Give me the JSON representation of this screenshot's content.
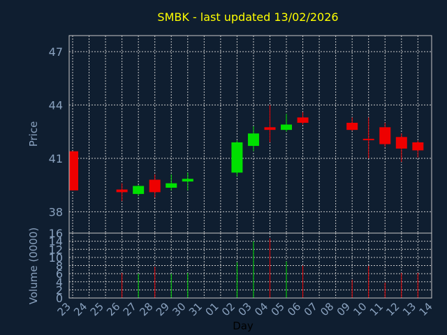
{
  "colors": {
    "background": "#0f1e30",
    "title": "#ffff00",
    "label": "#8aa2bf",
    "grid": "#c8c8c8",
    "up": "#00e000",
    "down": "#ee0000",
    "frame": "#c8c8c8",
    "xlabel": "#000000"
  },
  "chart_data": {
    "type": "candlestick",
    "title": "SMBK - last updated 13/02/2026",
    "price_ylabel": "Price",
    "volume_ylabel": "Volume (0000)",
    "xlabel": "Day",
    "grid": true,
    "price_ylim": [
      36.8,
      47.9
    ],
    "price_ticks": [
      "38",
      "41",
      "44",
      "47"
    ],
    "volume_ylim": [
      0,
      16
    ],
    "volume_ticks": [
      "0",
      "2",
      "4",
      "6",
      "8",
      "10",
      "12",
      "14",
      "16"
    ],
    "days": [
      "23",
      "24",
      "25",
      "26",
      "27",
      "28",
      "29",
      "30",
      "31",
      "01",
      "02",
      "03",
      "04",
      "05",
      "06",
      "07",
      "08",
      "09",
      "10",
      "11",
      "12",
      "13",
      "14"
    ],
    "candles": [
      {
        "day": "23",
        "open": 41.4,
        "high": 41.4,
        "low": 39.2,
        "close": 39.2,
        "volume": 0
      },
      {
        "day": "26",
        "open": 39.25,
        "high": 39.6,
        "low": 38.6,
        "close": 39.1,
        "volume": 6.2
      },
      {
        "day": "27",
        "open": 39.0,
        "high": 39.5,
        "low": 38.9,
        "close": 39.45,
        "volume": 6.0
      },
      {
        "day": "28",
        "open": 39.8,
        "high": 40.1,
        "low": 38.8,
        "close": 39.1,
        "volume": 7.7
      },
      {
        "day": "29",
        "open": 39.35,
        "high": 40.1,
        "low": 39.2,
        "close": 39.6,
        "volume": 6.0
      },
      {
        "day": "30",
        "open": 39.7,
        "high": 40.2,
        "low": 39.2,
        "close": 39.85,
        "volume": 6.2
      },
      {
        "day": "02",
        "open": 40.2,
        "high": 42.0,
        "low": 40.0,
        "close": 41.9,
        "volume": 8.8
      },
      {
        "day": "03",
        "open": 41.7,
        "high": 42.8,
        "low": 41.4,
        "close": 42.4,
        "volume": 14.0
      },
      {
        "day": "04",
        "open": 42.75,
        "high": 44.0,
        "low": 41.9,
        "close": 42.6,
        "volume": 14.7
      },
      {
        "day": "05",
        "open": 42.6,
        "high": 43.5,
        "low": 42.5,
        "close": 42.9,
        "volume": 9.0
      },
      {
        "day": "06",
        "open": 43.3,
        "high": 43.6,
        "low": 42.9,
        "close": 43.0,
        "volume": 8.0
      },
      {
        "day": "09",
        "open": 43.0,
        "high": 43.3,
        "low": 42.55,
        "close": 42.6,
        "volume": 4.5
      },
      {
        "day": "10",
        "open": 42.1,
        "high": 43.3,
        "low": 41.0,
        "close": 42.05,
        "volume": 7.9
      },
      {
        "day": "11",
        "open": 42.75,
        "high": 43.0,
        "low": 41.65,
        "close": 41.8,
        "volume": 3.8
      },
      {
        "day": "12",
        "open": 42.2,
        "high": 42.4,
        "low": 40.8,
        "close": 41.55,
        "volume": 6.2
      },
      {
        "day": "13",
        "open": 41.9,
        "high": 42.0,
        "low": 41.05,
        "close": 41.45,
        "volume": 6.2
      }
    ]
  }
}
